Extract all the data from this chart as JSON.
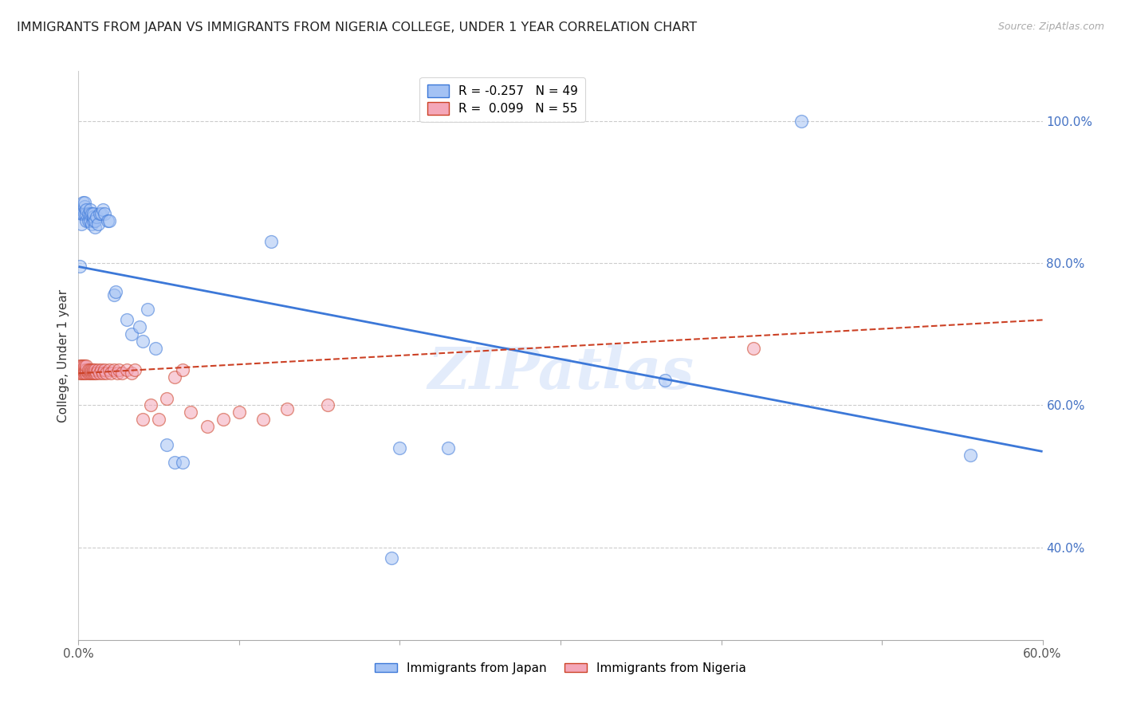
{
  "title": "IMMIGRANTS FROM JAPAN VS IMMIGRANTS FROM NIGERIA COLLEGE, UNDER 1 YEAR CORRELATION CHART",
  "source": "Source: ZipAtlas.com",
  "ylabel": "College, Under 1 year",
  "legend_japan": "Immigrants from Japan",
  "legend_nigeria": "Immigrants from Nigeria",
  "r_japan": -0.257,
  "n_japan": 49,
  "r_nigeria": 0.099,
  "n_nigeria": 55,
  "color_japan": "#a4c2f4",
  "color_nigeria": "#f4a7b9",
  "color_japan_line": "#3c78d8",
  "color_nigeria_line": "#cc4125",
  "xmin": 0.0,
  "xmax": 0.6,
  "ymin": 0.27,
  "ymax": 1.07,
  "japan_x": [
    0.001,
    0.002,
    0.002,
    0.003,
    0.003,
    0.004,
    0.004,
    0.004,
    0.005,
    0.005,
    0.005,
    0.006,
    0.006,
    0.007,
    0.007,
    0.007,
    0.008,
    0.008,
    0.009,
    0.009,
    0.009,
    0.01,
    0.01,
    0.011,
    0.012,
    0.013,
    0.014,
    0.015,
    0.016,
    0.018,
    0.019,
    0.022,
    0.023,
    0.03,
    0.033,
    0.038,
    0.04,
    0.043,
    0.048,
    0.055,
    0.06,
    0.065,
    0.12,
    0.195,
    0.2,
    0.23,
    0.365,
    0.45,
    0.555
  ],
  "japan_y": [
    0.795,
    0.855,
    0.87,
    0.87,
    0.885,
    0.87,
    0.88,
    0.885,
    0.86,
    0.87,
    0.875,
    0.86,
    0.87,
    0.86,
    0.87,
    0.875,
    0.855,
    0.87,
    0.86,
    0.865,
    0.87,
    0.85,
    0.86,
    0.865,
    0.855,
    0.87,
    0.87,
    0.875,
    0.87,
    0.86,
    0.86,
    0.755,
    0.76,
    0.72,
    0.7,
    0.71,
    0.69,
    0.735,
    0.68,
    0.545,
    0.52,
    0.52,
    0.83,
    0.385,
    0.54,
    0.54,
    0.635,
    1.0,
    0.53
  ],
  "nigeria_x": [
    0.001,
    0.001,
    0.001,
    0.002,
    0.002,
    0.002,
    0.003,
    0.003,
    0.003,
    0.004,
    0.004,
    0.004,
    0.005,
    0.005,
    0.005,
    0.006,
    0.006,
    0.007,
    0.007,
    0.008,
    0.008,
    0.009,
    0.009,
    0.01,
    0.01,
    0.011,
    0.012,
    0.013,
    0.014,
    0.015,
    0.016,
    0.017,
    0.019,
    0.02,
    0.022,
    0.024,
    0.025,
    0.027,
    0.03,
    0.033,
    0.035,
    0.04,
    0.045,
    0.05,
    0.055,
    0.06,
    0.065,
    0.07,
    0.08,
    0.09,
    0.1,
    0.115,
    0.13,
    0.155,
    0.42
  ],
  "nigeria_y": [
    0.645,
    0.65,
    0.655,
    0.645,
    0.65,
    0.655,
    0.645,
    0.65,
    0.655,
    0.645,
    0.65,
    0.655,
    0.645,
    0.65,
    0.655,
    0.645,
    0.65,
    0.645,
    0.65,
    0.645,
    0.65,
    0.645,
    0.65,
    0.645,
    0.65,
    0.645,
    0.65,
    0.645,
    0.65,
    0.645,
    0.65,
    0.645,
    0.65,
    0.645,
    0.65,
    0.645,
    0.65,
    0.645,
    0.65,
    0.645,
    0.65,
    0.58,
    0.6,
    0.58,
    0.61,
    0.64,
    0.65,
    0.59,
    0.57,
    0.58,
    0.59,
    0.58,
    0.595,
    0.6,
    0.68
  ],
  "xtick_values": [
    0.0,
    0.1,
    0.2,
    0.3,
    0.4,
    0.5,
    0.6
  ],
  "xtick_labels_show": {
    "0.0": "0.0%",
    "0.60": "60.0%"
  },
  "ytick_values": [
    1.0,
    0.8,
    0.6,
    0.4
  ],
  "ytick_labels_right": [
    "100.0%",
    "80.0%",
    "60.0%",
    "40.0%"
  ],
  "watermark": "ZIPatlas",
  "background_color": "#ffffff",
  "grid_color": "#cccccc",
  "trend_japan_x0": 0.0,
  "trend_japan_y0": 0.795,
  "trend_japan_x1": 0.6,
  "trend_japan_y1": 0.535,
  "trend_nigeria_x0": 0.0,
  "trend_nigeria_y0": 0.645,
  "trend_nigeria_x1": 0.6,
  "trend_nigeria_y1": 0.72
}
